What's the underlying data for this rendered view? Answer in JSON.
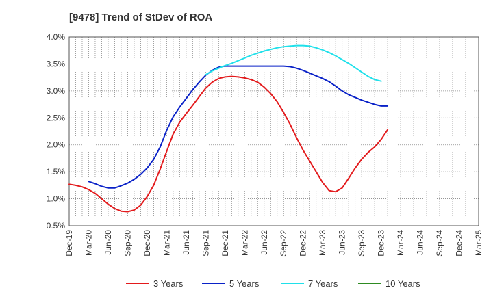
{
  "chart_data": {
    "type": "line",
    "title": "[9478]  Trend of StDev of ROA",
    "xlabel": "",
    "ylabel": "",
    "ylim": [
      0.5,
      4.0
    ],
    "grid": true,
    "legend_position": "bottom",
    "y_ticks": [
      0.5,
      1.0,
      1.5,
      2.0,
      2.5,
      3.0,
      3.5,
      4.0
    ],
    "y_tick_labels": [
      "0.5%",
      "1.0%",
      "1.5%",
      "2.0%",
      "2.5%",
      "3.0%",
      "3.5%",
      "4.0%"
    ],
    "x_tick_labels": [
      "Dec-19",
      "Mar-20",
      "Jun-20",
      "Sep-20",
      "Dec-20",
      "Mar-21",
      "Jun-21",
      "Sep-21",
      "Dec-21",
      "Mar-22",
      "Jun-22",
      "Sep-22",
      "Dec-22",
      "Mar-23",
      "Jun-23",
      "Sep-23",
      "Dec-23",
      "Mar-24",
      "Jun-24",
      "Sep-24",
      "Dec-24",
      "Mar-25"
    ],
    "series": [
      {
        "name": "3 Years",
        "color": "#e31a1c",
        "points": [
          [
            0,
            1.27
          ],
          [
            1,
            1.25
          ],
          [
            2,
            1.22
          ],
          [
            3,
            1.17
          ],
          [
            4,
            1.1
          ],
          [
            5,
            1.0
          ],
          [
            6,
            0.9
          ],
          [
            7,
            0.82
          ],
          [
            8,
            0.77
          ],
          [
            9,
            0.76
          ],
          [
            10,
            0.79
          ],
          [
            11,
            0.88
          ],
          [
            12,
            1.04
          ],
          [
            13,
            1.25
          ],
          [
            14,
            1.55
          ],
          [
            15,
            1.88
          ],
          [
            16,
            2.2
          ],
          [
            17,
            2.42
          ],
          [
            18,
            2.58
          ],
          [
            19,
            2.73
          ],
          [
            20,
            2.89
          ],
          [
            21,
            3.05
          ],
          [
            22,
            3.16
          ],
          [
            23,
            3.23
          ],
          [
            24,
            3.26
          ],
          [
            25,
            3.27
          ],
          [
            26,
            3.26
          ],
          [
            27,
            3.24
          ],
          [
            28,
            3.21
          ],
          [
            29,
            3.16
          ],
          [
            30,
            3.07
          ],
          [
            31,
            2.95
          ],
          [
            32,
            2.8
          ],
          [
            33,
            2.6
          ],
          [
            34,
            2.38
          ],
          [
            35,
            2.13
          ],
          [
            36,
            1.9
          ],
          [
            37,
            1.7
          ],
          [
            38,
            1.5
          ],
          [
            39,
            1.3
          ],
          [
            40,
            1.15
          ],
          [
            41,
            1.13
          ],
          [
            42,
            1.2
          ],
          [
            43,
            1.38
          ],
          [
            44,
            1.57
          ],
          [
            45,
            1.73
          ],
          [
            46,
            1.86
          ],
          [
            47,
            1.96
          ],
          [
            48,
            2.1
          ],
          [
            49,
            2.28
          ]
        ]
      },
      {
        "name": "5 Years",
        "color": "#0a22c8",
        "points": [
          [
            3,
            1.32
          ],
          [
            4,
            1.28
          ],
          [
            5,
            1.23
          ],
          [
            6,
            1.2
          ],
          [
            7,
            1.2
          ],
          [
            8,
            1.24
          ],
          [
            9,
            1.29
          ],
          [
            10,
            1.36
          ],
          [
            11,
            1.45
          ],
          [
            12,
            1.57
          ],
          [
            13,
            1.73
          ],
          [
            14,
            1.96
          ],
          [
            15,
            2.27
          ],
          [
            16,
            2.52
          ],
          [
            17,
            2.7
          ],
          [
            18,
            2.86
          ],
          [
            19,
            3.02
          ],
          [
            20,
            3.16
          ],
          [
            21,
            3.29
          ],
          [
            22,
            3.38
          ],
          [
            23,
            3.44
          ],
          [
            24,
            3.46
          ],
          [
            25,
            3.46
          ],
          [
            26,
            3.46
          ],
          [
            27,
            3.46
          ],
          [
            28,
            3.46
          ],
          [
            29,
            3.46
          ],
          [
            30,
            3.46
          ],
          [
            31,
            3.46
          ],
          [
            32,
            3.46
          ],
          [
            33,
            3.46
          ],
          [
            34,
            3.45
          ],
          [
            35,
            3.42
          ],
          [
            36,
            3.38
          ],
          [
            37,
            3.33
          ],
          [
            38,
            3.28
          ],
          [
            39,
            3.23
          ],
          [
            40,
            3.17
          ],
          [
            41,
            3.09
          ],
          [
            42,
            3.0
          ],
          [
            43,
            2.93
          ],
          [
            44,
            2.88
          ],
          [
            45,
            2.83
          ],
          [
            46,
            2.79
          ],
          [
            47,
            2.75
          ],
          [
            48,
            2.72
          ],
          [
            49,
            2.72
          ]
        ]
      },
      {
        "name": "7 Years",
        "color": "#20e0ea",
        "points": [
          [
            21,
            3.3
          ],
          [
            22,
            3.37
          ],
          [
            23,
            3.42
          ],
          [
            24,
            3.47
          ],
          [
            25,
            3.51
          ],
          [
            26,
            3.56
          ],
          [
            27,
            3.61
          ],
          [
            28,
            3.66
          ],
          [
            29,
            3.7
          ],
          [
            30,
            3.74
          ],
          [
            31,
            3.77
          ],
          [
            32,
            3.8
          ],
          [
            33,
            3.82
          ],
          [
            34,
            3.83
          ],
          [
            35,
            3.84
          ],
          [
            36,
            3.84
          ],
          [
            37,
            3.83
          ],
          [
            38,
            3.8
          ],
          [
            39,
            3.76
          ],
          [
            40,
            3.71
          ],
          [
            41,
            3.65
          ],
          [
            42,
            3.58
          ],
          [
            43,
            3.51
          ],
          [
            44,
            3.43
          ],
          [
            45,
            3.35
          ],
          [
            46,
            3.27
          ],
          [
            47,
            3.21
          ],
          [
            48,
            3.18
          ]
        ]
      },
      {
        "name": "10 Years",
        "color": "#2e8b22",
        "points": []
      }
    ]
  }
}
